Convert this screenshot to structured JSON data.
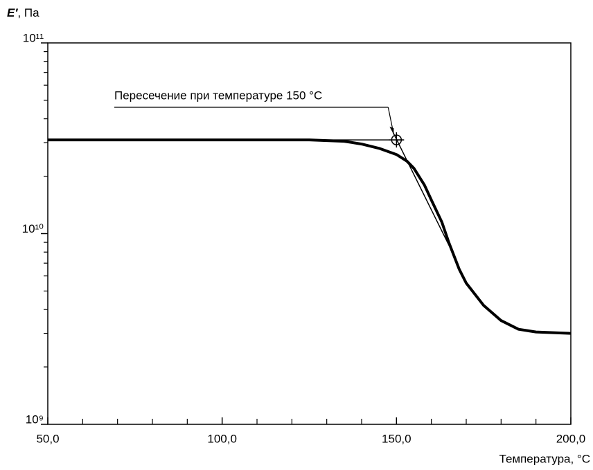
{
  "chart_data": {
    "type": "line",
    "ylabel_symbol": "E′",
    "ylabel_unit": ", Па",
    "xlabel": "Температура, °C",
    "xlim": [
      50,
      200
    ],
    "xticks": [
      {
        "value": 50,
        "label": "50,0"
      },
      {
        "value": 100,
        "label": "100,0"
      },
      {
        "value": 150,
        "label": "150,0"
      },
      {
        "value": 200,
        "label": "200,0"
      }
    ],
    "xminor_ticks": [
      60,
      70,
      80,
      90,
      110,
      120,
      130,
      140,
      160,
      170,
      180,
      190
    ],
    "ylim": [
      1000000000,
      100000000000
    ],
    "yscale": "log",
    "yticks": [
      {
        "value": 1000000000,
        "label": "10⁹"
      },
      {
        "value": 10000000000,
        "label": "10¹⁰"
      },
      {
        "value": 100000000000,
        "label": "10¹¹"
      }
    ],
    "yminor_ticks": [
      2000000000,
      3000000000,
      4000000000,
      5000000000,
      6000000000,
      7000000000,
      8000000000,
      9000000000,
      20000000000,
      30000000000,
      40000000000,
      50000000000,
      60000000000,
      70000000000,
      80000000000,
      90000000000
    ],
    "series": [
      {
        "color": "#000000",
        "x": [
          50,
          125,
          135,
          140,
          145,
          150,
          153,
          155,
          158,
          160,
          163,
          165,
          168,
          170,
          175,
          180,
          185,
          190,
          200
        ],
        "values": [
          31000000000,
          31000000000,
          30500000000,
          29500000000,
          28000000000,
          26000000000,
          24000000000,
          22000000000,
          18000000000,
          15000000000,
          11500000000,
          9000000000,
          6500000000,
          5500000000,
          4200000000,
          3500000000,
          3150000000,
          3050000000,
          3000000000
        ]
      }
    ],
    "annotation_lines": [
      {
        "x": [
          50,
          152
        ],
        "values": [
          31000000000,
          31000000000
        ]
      },
      {
        "x": [
          149,
          166
        ],
        "values": [
          34000000000,
          8000000000
        ]
      }
    ],
    "annotation": {
      "text": "Пересечение при температуре 150 °C",
      "x": 150,
      "y": 31000000000
    }
  }
}
